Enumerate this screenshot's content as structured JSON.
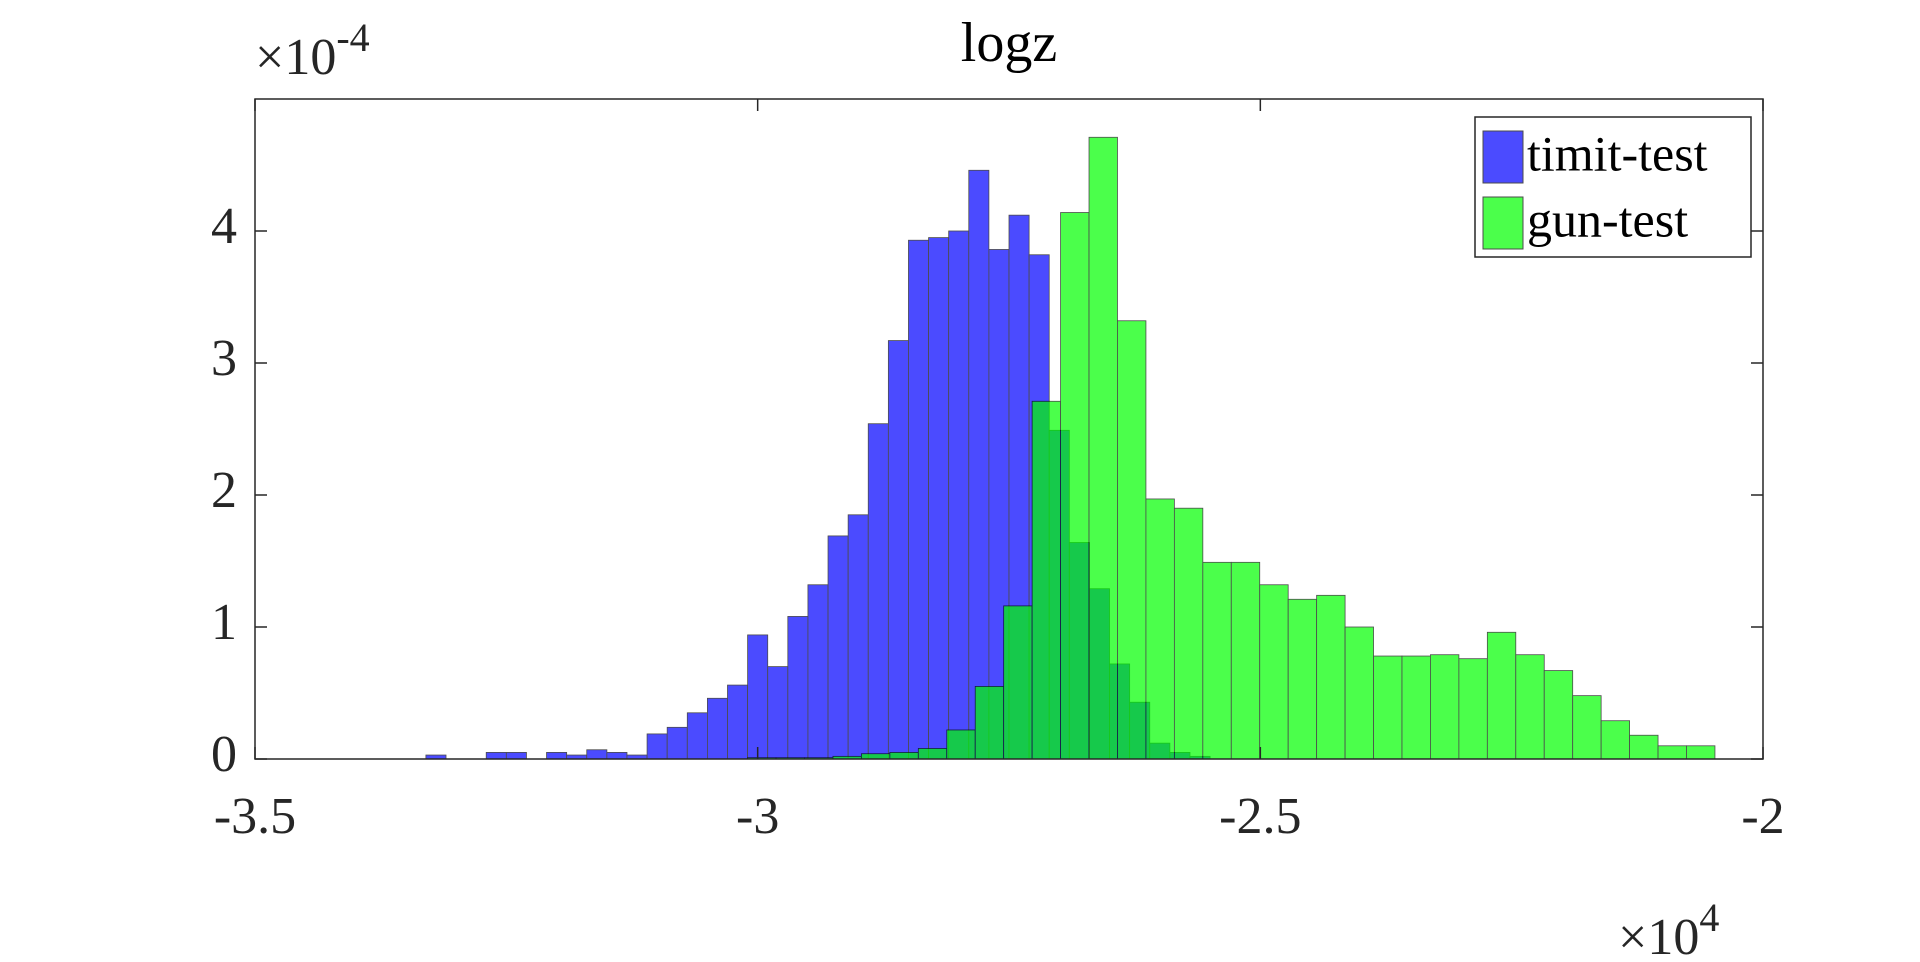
{
  "chart_data": {
    "type": "histogram",
    "title": "logz",
    "y_multiplier": {
      "base": "×10",
      "exponent": "-4"
    },
    "x_multiplier": {
      "base": "×10",
      "exponent": "4"
    },
    "xlim": [
      -3.5,
      -2
    ],
    "xticks": [
      -3.5,
      -3,
      -2.5,
      -2
    ],
    "ylim": [
      0,
      5
    ],
    "yticks": [
      0,
      1,
      2,
      3,
      4
    ],
    "alpha": 0.7,
    "legend": "top-right",
    "box": true,
    "series": [
      {
        "name": "timit-test",
        "color": "#0000ff",
        "bins": [
          -3.33,
          -3.31,
          -3.29,
          -3.27,
          -3.25,
          -3.23,
          -3.21,
          -3.19,
          -3.17,
          -3.15,
          -3.13,
          -3.11,
          -3.09,
          -3.07,
          -3.05,
          -3.03,
          -3.01,
          -2.99,
          -2.97,
          -2.95,
          -2.93,
          -2.91,
          -2.89,
          -2.87,
          -2.85,
          -2.83,
          -2.81,
          -2.79,
          -2.77,
          -2.75,
          -2.73,
          -2.71,
          -2.69,
          -2.67,
          -2.65,
          -2.63,
          -2.61,
          -2.59,
          -2.57,
          -2.55
        ],
        "values": [
          0.03,
          0,
          0,
          0.05,
          0.05,
          0,
          0.05,
          0.03,
          0.07,
          0.05,
          0.03,
          0.19,
          0.24,
          0.35,
          0.46,
          0.56,
          0.94,
          0.7,
          1.08,
          1.32,
          1.69,
          1.85,
          2.54,
          3.17,
          3.93,
          3.95,
          4.0,
          4.46,
          3.86,
          4.12,
          3.82,
          2.49,
          1.64,
          1.29,
          0.72,
          0.43,
          0.12,
          0.05,
          0.02
        ]
      },
      {
        "name": "gun-test",
        "color": "#00ff00",
        "bins": [
          -3.01,
          -2.9817,
          -2.9534,
          -2.9251,
          -2.8968,
          -2.8685,
          -2.8402,
          -2.8119,
          -2.7836,
          -2.7553,
          -2.727,
          -2.6987,
          -2.6704,
          -2.6421,
          -2.6138,
          -2.5855,
          -2.5572,
          -2.5289,
          -2.5006,
          -2.4723,
          -2.444,
          -2.4157,
          -2.3874,
          -2.3591,
          -2.3308,
          -2.3025,
          -2.2742,
          -2.2459,
          -2.2176,
          -2.1893,
          -2.161,
          -2.1327,
          -2.1044,
          -2.0761,
          -2.0478
        ],
        "values": [
          0.01,
          0.01,
          0.01,
          0.02,
          0.04,
          0.05,
          0.08,
          0.22,
          0.55,
          1.16,
          2.71,
          4.14,
          4.71,
          3.32,
          1.97,
          1.9,
          1.49,
          1.49,
          1.32,
          1.21,
          1.24,
          1.0,
          0.78,
          0.78,
          0.79,
          0.76,
          0.96,
          0.79,
          0.67,
          0.48,
          0.29,
          0.18,
          0.1,
          0.1
        ]
      }
    ]
  }
}
